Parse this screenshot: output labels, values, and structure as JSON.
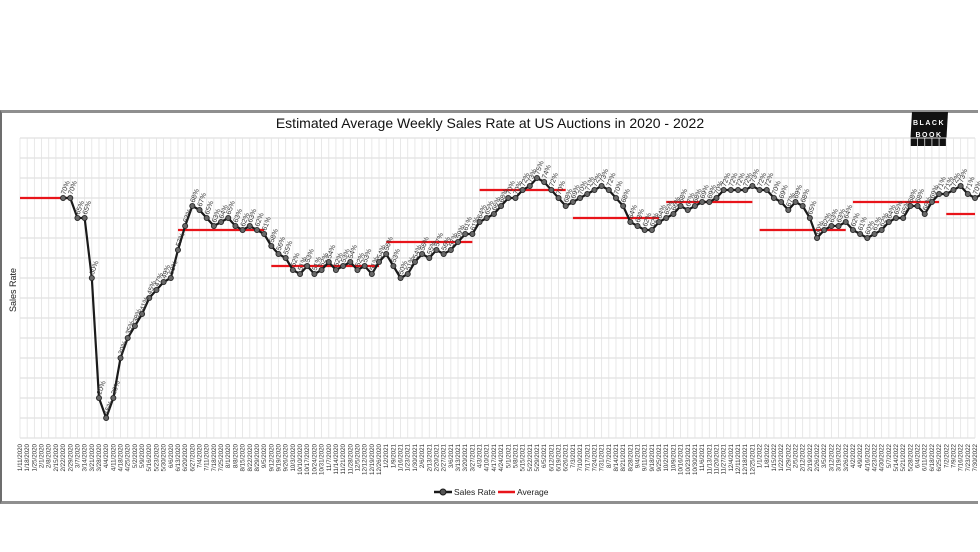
{
  "chart_data": {
    "type": "line",
    "title": "Estimated Average Weekly Sales Rate at US Auctions in 2020 - 2022",
    "xlabel": "",
    "ylabel": "Sales Rate",
    "ylim": [
      10,
      85
    ],
    "grid": true,
    "legend_position": "bottom-center",
    "brand": {
      "line1": "BLACK",
      "line2": "BOOK"
    },
    "x_start": "1/11/2020",
    "categories": [
      "1/11/2020",
      "1/18/2020",
      "1/25/2020",
      "2/1/2020",
      "2/8/2020",
      "2/15/2020",
      "2/22/2020",
      "2/29/2020",
      "3/7/2020",
      "3/14/2020",
      "3/21/2020",
      "3/28/2020",
      "4/4/2020",
      "4/11/2020",
      "4/18/2020",
      "4/25/2020",
      "5/2/2020",
      "5/9/2020",
      "5/16/2020",
      "5/23/2020",
      "5/30/2020",
      "6/6/2020",
      "6/13/2020",
      "6/20/2020",
      "6/27/2020",
      "7/4/2020",
      "7/11/2020",
      "7/18/2020",
      "7/25/2020",
      "8/1/2020",
      "8/8/2020",
      "8/15/2020",
      "8/22/2020",
      "8/29/2020",
      "9/5/2020",
      "9/12/2020",
      "9/19/2020",
      "9/26/2020",
      "10/3/2020",
      "10/10/2020",
      "10/17/2020",
      "10/24/2020",
      "10/31/2020",
      "11/7/2020",
      "11/14/2020",
      "11/21/2020",
      "11/28/2020",
      "12/5/2020",
      "12/12/2020",
      "12/19/2020",
      "12/26/2020",
      "1/2/2021",
      "1/9/2021",
      "1/16/2021",
      "1/23/2021",
      "1/30/2021",
      "2/6/2021",
      "2/13/2021",
      "2/20/2021",
      "2/27/2021",
      "3/6/2021",
      "3/13/2021",
      "3/20/2021",
      "3/27/2021",
      "4/3/2021",
      "4/10/2021",
      "4/17/2021",
      "4/24/2021",
      "5/1/2021",
      "5/8/2021",
      "5/15/2021",
      "5/22/2021",
      "5/29/2021",
      "6/5/2021",
      "6/12/2021",
      "6/19/2021",
      "6/26/2021",
      "7/3/2021",
      "7/10/2021",
      "7/17/2021",
      "7/24/2021",
      "7/31/2021",
      "8/7/2021",
      "8/14/2021",
      "8/21/2021",
      "8/28/2021",
      "9/4/2021",
      "9/11/2021",
      "9/18/2021",
      "9/25/2021",
      "10/2/2021",
      "10/9/2021",
      "10/16/2021",
      "10/23/2021",
      "10/30/2021",
      "11/6/2021",
      "11/13/2021",
      "11/20/2021",
      "11/27/2021",
      "12/4/2021",
      "12/11/2021",
      "12/18/2021",
      "12/25/2021",
      "1/1/2022",
      "1/8/2022",
      "1/15/2022",
      "1/22/2022",
      "1/29/2022",
      "2/5/2022",
      "2/12/2022",
      "2/19/2022",
      "2/26/2022",
      "3/5/2022",
      "3/12/2022",
      "3/19/2022",
      "3/26/2022",
      "4/2/2022",
      "4/9/2022",
      "4/16/2022",
      "4/23/2022",
      "4/30/2022",
      "5/7/2022",
      "5/14/2022",
      "5/21/2022",
      "5/28/2022",
      "6/4/2022",
      "6/11/2022",
      "6/18/2022",
      "6/25/2022",
      "7/2/2022",
      "7/9/2022",
      "7/16/2022",
      "7/23/2022",
      "7/30/2022"
    ],
    "series": [
      {
        "name": "Sales Rate",
        "color": "#1a1a1a",
        "start_index": 6,
        "values": [
          70,
          70,
          65,
          65,
          50,
          20,
          15,
          20,
          30,
          35,
          38,
          41,
          45,
          47,
          49,
          50,
          57,
          63,
          68,
          67,
          65,
          63,
          64,
          65,
          63,
          62,
          63,
          62,
          61,
          58,
          56,
          55,
          52,
          51,
          53,
          51,
          52,
          54,
          52,
          53,
          54,
          52,
          53,
          51,
          54,
          56,
          53,
          50,
          51,
          54,
          56,
          55,
          57,
          56,
          57,
          59,
          61,
          61,
          64,
          65,
          66,
          68,
          70,
          70,
          72,
          73,
          75,
          74,
          72,
          70,
          68,
          69,
          70,
          71,
          72,
          73,
          72,
          70,
          68,
          64,
          63,
          62,
          62,
          64,
          65,
          66,
          68,
          67,
          68,
          69,
          69,
          70,
          72,
          72,
          72,
          72,
          73,
          72,
          72,
          70,
          69,
          67,
          69,
          68,
          65,
          60,
          62,
          63,
          63,
          64,
          62,
          61,
          60,
          61,
          62,
          64,
          65,
          65,
          68,
          68,
          66,
          69,
          71,
          71,
          72,
          73,
          71,
          70,
          71,
          69,
          68,
          66,
          66,
          67,
          66
        ]
      },
      {
        "name": "Average",
        "color": "#e8141a",
        "segments": [
          {
            "from": "1/11/2020",
            "to": "2/29/2020",
            "value": 70
          },
          {
            "from": "6/13/2020",
            "to": "9/5/2020",
            "value": 62
          },
          {
            "from": "9/12/2020",
            "to": "12/26/2020",
            "value": 53
          },
          {
            "from": "1/2/2021",
            "to": "3/27/2021",
            "value": 59
          },
          {
            "from": "4/3/2021",
            "to": "6/26/2021",
            "value": 72
          },
          {
            "from": "7/3/2021",
            "to": "9/25/2021",
            "value": 65
          },
          {
            "from": "10/2/2021",
            "to": "12/25/2021",
            "value": 69
          },
          {
            "from": "1/1/2022",
            "to": "3/26/2022",
            "value": 62
          },
          {
            "from": "4/2/2022",
            "to": "6/25/2022",
            "value": 69
          },
          {
            "from": "7/2/2022",
            "to": "7/30/2022",
            "value": 66
          }
        ]
      }
    ]
  }
}
